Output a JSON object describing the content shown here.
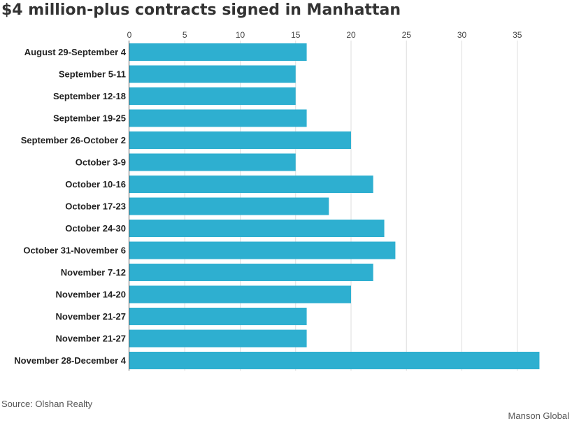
{
  "chart_data": {
    "type": "bar",
    "orientation": "horizontal",
    "title": "$4 million-plus contracts signed in Manhattan",
    "xlabel": "",
    "ylabel": "",
    "xlim": [
      0,
      37
    ],
    "xticks": [
      0,
      5,
      10,
      15,
      20,
      25,
      30,
      35
    ],
    "x_axis_position": "top",
    "grid": true,
    "legend": "none",
    "bar_color": "#2eafd0",
    "categories": [
      "August 29-September 4",
      "September 5-11",
      "September 12-18",
      "September 19-25",
      "September 26-October 2",
      "October 3-9",
      "October 10-16",
      "October 17-23",
      "October 24-30",
      "October 31-November 6",
      "November 7-12",
      "November 14-20",
      "November 21-27",
      "November 21-27",
      "November 28-December 4"
    ],
    "values": [
      16,
      15,
      15,
      16,
      20,
      15,
      22,
      18,
      23,
      24,
      22,
      20,
      16,
      16,
      37
    ]
  },
  "footer": {
    "source": "Source: Olshan Realty",
    "credit": "Manson Global"
  }
}
